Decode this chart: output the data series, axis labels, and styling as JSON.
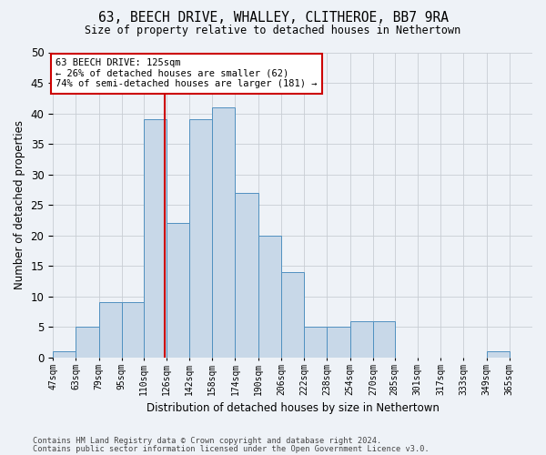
{
  "title1": "63, BEECH DRIVE, WHALLEY, CLITHEROE, BB7 9RA",
  "title2": "Size of property relative to detached houses in Nethertown",
  "xlabel": "Distribution of detached houses by size in Nethertown",
  "ylabel": "Number of detached properties",
  "bin_labels": [
    "47sqm",
    "63sqm",
    "79sqm",
    "95sqm",
    "110sqm",
    "126sqm",
    "142sqm",
    "158sqm",
    "174sqm",
    "190sqm",
    "206sqm",
    "222sqm",
    "238sqm",
    "254sqm",
    "270sqm",
    "285sqm",
    "301sqm",
    "317sqm",
    "333sqm",
    "349sqm",
    "365sqm"
  ],
  "bin_edges": [
    47,
    63,
    79,
    95,
    110,
    126,
    142,
    158,
    174,
    190,
    206,
    222,
    238,
    254,
    270,
    285,
    301,
    317,
    333,
    349,
    365,
    381
  ],
  "counts": [
    1,
    5,
    9,
    9,
    39,
    22,
    39,
    41,
    27,
    20,
    14,
    5,
    5,
    6,
    6,
    0,
    0,
    0,
    0,
    1,
    0
  ],
  "bar_color": "#c8d8e8",
  "bar_edge_color": "#5090c0",
  "vline_x": 125,
  "vline_color": "#cc0000",
  "annotation_text": "63 BEECH DRIVE: 125sqm\n← 26% of detached houses are smaller (62)\n74% of semi-detached houses are larger (181) →",
  "annotation_box_color": "#ffffff",
  "annotation_box_edge_color": "#cc0000",
  "ylim": [
    0,
    50
  ],
  "yticks": [
    0,
    5,
    10,
    15,
    20,
    25,
    30,
    35,
    40,
    45,
    50
  ],
  "footer1": "Contains HM Land Registry data © Crown copyright and database right 2024.",
  "footer2": "Contains public sector information licensed under the Open Government Licence v3.0.",
  "background_color": "#eef2f7"
}
